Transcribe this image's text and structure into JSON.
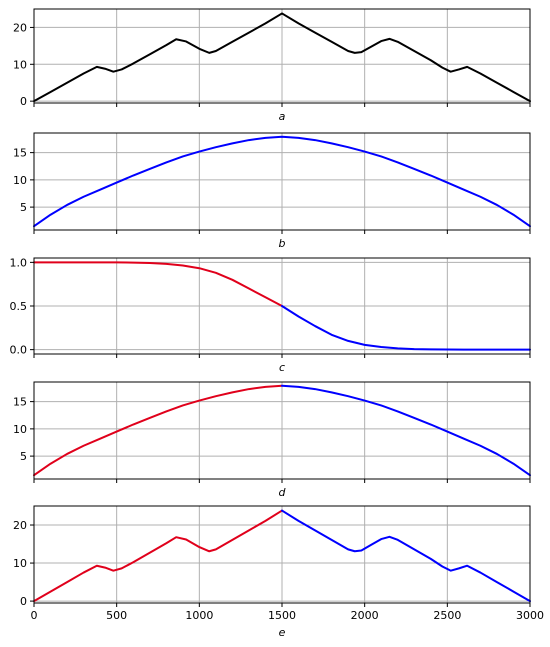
{
  "chart_data": [
    {
      "type": "line",
      "xlabel": "a",
      "xlim": [
        0,
        3000
      ],
      "ylim": [
        -0.5,
        25
      ],
      "yticks": [
        0,
        10,
        20
      ],
      "xticks": [
        0,
        500,
        1000,
        1500,
        2000,
        2500,
        3000
      ],
      "show_xtick_labels": false,
      "grid": true,
      "series": [
        {
          "color": "#000000",
          "x": [
            0,
            100,
            200,
            300,
            380,
            430,
            480,
            530,
            600,
            700,
            800,
            860,
            920,
            1000,
            1060,
            1100,
            1200,
            1300,
            1400,
            1500,
            1600,
            1700,
            1800,
            1900,
            1940,
            1980,
            2040,
            2100,
            2150,
            2200,
            2300,
            2400,
            2470,
            2520,
            2570,
            2620,
            2700,
            2800,
            2900,
            3000
          ],
          "y": [
            0,
            2.5,
            5,
            7.5,
            9.3,
            8.8,
            8.0,
            8.6,
            10.2,
            12.7,
            15.2,
            16.8,
            16.2,
            14.2,
            13.1,
            13.6,
            16.1,
            18.6,
            21.1,
            23.8,
            21.1,
            18.6,
            16.1,
            13.6,
            13.1,
            13.3,
            14.8,
            16.3,
            16.9,
            16.1,
            13.6,
            11.1,
            9.1,
            8.0,
            8.6,
            9.3,
            7.5,
            5.0,
            2.5,
            0
          ]
        }
      ]
    },
    {
      "type": "line",
      "xlabel": "b",
      "xlim": [
        0,
        3000
      ],
      "ylim": [
        0.8,
        18.6
      ],
      "yticks": [
        5,
        10,
        15
      ],
      "xticks": [
        0,
        500,
        1000,
        1500,
        2000,
        2500,
        3000
      ],
      "show_xtick_labels": false,
      "grid": true,
      "series": [
        {
          "color": "#0000ff",
          "x": [
            0,
            100,
            200,
            300,
            400,
            500,
            600,
            700,
            800,
            900,
            1000,
            1100,
            1200,
            1300,
            1400,
            1500,
            1600,
            1700,
            1800,
            1900,
            2000,
            2100,
            2200,
            2300,
            2400,
            2500,
            2600,
            2700,
            2800,
            2900,
            3000
          ],
          "y": [
            1.5,
            3.6,
            5.4,
            6.9,
            8.2,
            9.5,
            10.8,
            12.0,
            13.2,
            14.3,
            15.2,
            16.0,
            16.7,
            17.3,
            17.7,
            17.9,
            17.7,
            17.3,
            16.7,
            16.0,
            15.2,
            14.3,
            13.2,
            12.0,
            10.8,
            9.5,
            8.2,
            6.9,
            5.4,
            3.6,
            1.5
          ]
        }
      ]
    },
    {
      "type": "line",
      "xlabel": "c",
      "xlim": [
        0,
        3000
      ],
      "ylim": [
        -0.05,
        1.05
      ],
      "yticks": [
        0.0,
        0.5,
        1.0
      ],
      "ytick_labels": [
        "0.0",
        "0.5",
        "1.0"
      ],
      "xticks": [
        0,
        500,
        1000,
        1500,
        2000,
        2500,
        3000
      ],
      "show_xtick_labels": false,
      "grid": true,
      "series": [
        {
          "color": "#e0001b",
          "x": [
            0,
            100,
            200,
            300,
            400,
            500,
            600,
            700,
            800,
            900,
            1000,
            1100,
            1200,
            1300,
            1400,
            1500
          ],
          "y": [
            1.0,
            1.0,
            1.0,
            1.0,
            1.0,
            1.0,
            0.997,
            0.992,
            0.982,
            0.964,
            0.933,
            0.88,
            0.8,
            0.7,
            0.6,
            0.5
          ]
        },
        {
          "color": "#0000ff",
          "x": [
            1500,
            1600,
            1700,
            1800,
            1900,
            2000,
            2100,
            2200,
            2300,
            2400,
            2500,
            2600,
            2700,
            2800,
            2900,
            3000
          ],
          "y": [
            0.5,
            0.38,
            0.27,
            0.17,
            0.1,
            0.055,
            0.03,
            0.015,
            0.006,
            0.003,
            0.001,
            0.0,
            0.0,
            0.0,
            0.0,
            0.0
          ]
        }
      ]
    },
    {
      "type": "line",
      "xlabel": "d",
      "xlim": [
        0,
        3000
      ],
      "ylim": [
        0.8,
        18.6
      ],
      "yticks": [
        5,
        10,
        15
      ],
      "xticks": [
        0,
        500,
        1000,
        1500,
        2000,
        2500,
        3000
      ],
      "show_xtick_labels": false,
      "grid": true,
      "series": [
        {
          "color": "#e0001b",
          "x": [
            0,
            100,
            200,
            300,
            400,
            500,
            600,
            700,
            800,
            900,
            1000,
            1100,
            1200,
            1300,
            1400,
            1500
          ],
          "y": [
            1.5,
            3.6,
            5.4,
            6.9,
            8.2,
            9.5,
            10.8,
            12.0,
            13.2,
            14.3,
            15.2,
            16.0,
            16.7,
            17.3,
            17.7,
            17.9
          ]
        },
        {
          "color": "#0000ff",
          "x": [
            1500,
            1600,
            1700,
            1800,
            1900,
            2000,
            2100,
            2200,
            2300,
            2400,
            2500,
            2600,
            2700,
            2800,
            2900,
            3000
          ],
          "y": [
            17.9,
            17.7,
            17.3,
            16.7,
            16.0,
            15.2,
            14.3,
            13.2,
            12.0,
            10.8,
            9.5,
            8.2,
            6.9,
            5.4,
            3.6,
            1.5
          ]
        }
      ]
    },
    {
      "type": "line",
      "xlabel": "e",
      "xlim": [
        0,
        3000
      ],
      "ylim": [
        -0.5,
        25
      ],
      "yticks": [
        0,
        10,
        20
      ],
      "xticks": [
        0,
        500,
        1000,
        1500,
        2000,
        2500,
        3000
      ],
      "show_xtick_labels": true,
      "grid": true,
      "series": [
        {
          "color": "#e0001b",
          "x": [
            0,
            100,
            200,
            300,
            380,
            430,
            480,
            530,
            600,
            700,
            800,
            860,
            920,
            1000,
            1060,
            1100,
            1200,
            1300,
            1400,
            1500
          ],
          "y": [
            0,
            2.5,
            5,
            7.5,
            9.3,
            8.8,
            8.0,
            8.6,
            10.2,
            12.7,
            15.2,
            16.8,
            16.2,
            14.2,
            13.1,
            13.6,
            16.1,
            18.6,
            21.1,
            23.8
          ]
        },
        {
          "color": "#0000ff",
          "x": [
            1500,
            1600,
            1700,
            1800,
            1900,
            1940,
            1980,
            2040,
            2100,
            2150,
            2200,
            2300,
            2400,
            2470,
            2520,
            2570,
            2620,
            2700,
            2800,
            2900,
            3000
          ],
          "y": [
            23.8,
            21.1,
            18.6,
            16.1,
            13.6,
            13.1,
            13.3,
            14.8,
            16.3,
            16.9,
            16.1,
            13.6,
            11.1,
            9.1,
            8.0,
            8.6,
            9.3,
            7.5,
            5.0,
            2.5,
            0
          ]
        }
      ]
    }
  ]
}
